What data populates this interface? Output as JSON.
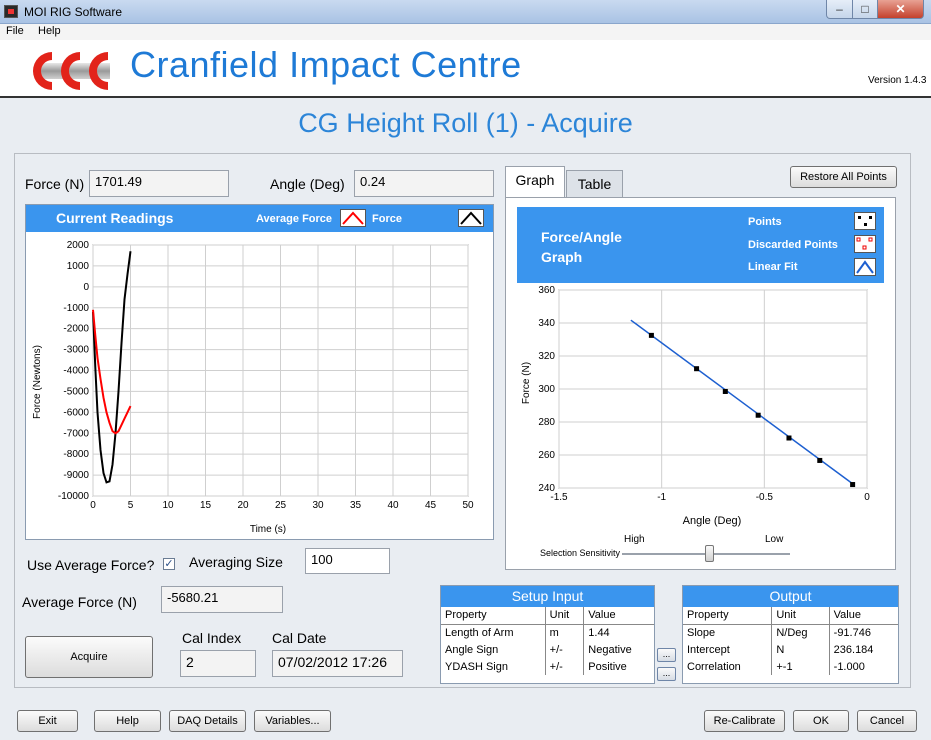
{
  "window": {
    "title": "MOI RIG Software",
    "min": "–",
    "max": "□",
    "close": "✕"
  },
  "menu": {
    "file": "File",
    "help": "Help"
  },
  "header": {
    "brand": "Cranfield Impact Centre",
    "version": "Version 1.4.3"
  },
  "page_title": "CG Height Roll (1) - Acquire",
  "readout": {
    "force_label": "Force (N)",
    "force_value": "1701.49",
    "angle_label": "Angle (Deg)",
    "angle_value": "0.24"
  },
  "current_readings": {
    "title": "Current Readings",
    "legend_average": "Average Force",
    "legend_force": "Force",
    "ylabel": "Force (Newtons)",
    "xlabel": "Time (s)",
    "x_ticks": [
      "0",
      "5",
      "10",
      "15",
      "20",
      "25",
      "30",
      "35",
      "40",
      "45",
      "50"
    ],
    "y_ticks": [
      "2000",
      "1000",
      "0",
      "-1000",
      "-2000",
      "-3000",
      "-4000",
      "-5000",
      "-6000",
      "-7000",
      "-8000",
      "-9000",
      "-10000"
    ],
    "average_color": "#ff0000",
    "force_color": "#000000"
  },
  "chart_data": [
    {
      "type": "line",
      "title": "Current Readings",
      "xlabel": "Time (s)",
      "ylabel": "Force (Newtons)",
      "xlim": [
        0,
        50
      ],
      "ylim": [
        -10000,
        2000
      ],
      "grid": true,
      "series": [
        {
          "name": "Force",
          "x": [
            0,
            0.3,
            0.6,
            1.0,
            1.4,
            1.8,
            2.2,
            2.6,
            3.0,
            3.4,
            3.8,
            4.2,
            4.6,
            5.0
          ],
          "values": [
            -1200,
            -3800,
            -6000,
            -7800,
            -8900,
            -9350,
            -9300,
            -8500,
            -7000,
            -5000,
            -2700,
            -600,
            600,
            1700
          ]
        },
        {
          "name": "Average Force",
          "x": [
            0,
            0.3,
            0.6,
            1.0,
            1.4,
            1.8,
            2.2,
            2.6,
            3.0,
            3.4,
            3.8,
            4.2,
            4.6,
            5.0
          ],
          "values": [
            -1100,
            -2300,
            -3400,
            -4400,
            -5300,
            -6000,
            -6500,
            -6900,
            -7000,
            -6900,
            -6600,
            -6300,
            -6000,
            -5700
          ]
        }
      ]
    },
    {
      "type": "scatter",
      "title": "Force/Angle Graph",
      "xlabel": "Angle (Deg)",
      "ylabel": "Force (N)",
      "xlim": [
        -1.5,
        0
      ],
      "ylim": [
        240,
        360
      ],
      "grid": true,
      "x_ticks": [
        "-1.5",
        "-1",
        "-0.5",
        "0"
      ],
      "y_ticks": [
        "360",
        "340",
        "320",
        "300",
        "280",
        "260",
        "240"
      ],
      "series": [
        {
          "name": "Points",
          "x": [
            -1.05,
            -0.83,
            -0.69,
            -0.53,
            -0.38,
            -0.23,
            -0.07
          ],
          "values": [
            332.5,
            312.3,
            298.5,
            284.1,
            270.3,
            256.7,
            242.1
          ]
        },
        {
          "name": "Linear Fit",
          "x": [
            -1.15,
            -0.07
          ],
          "values": [
            341.7,
            242.6
          ]
        }
      ]
    }
  ],
  "controls": {
    "use_average_label": "Use Average Force?",
    "use_average_checked": "✓",
    "averaging_size_label": "Averaging Size",
    "averaging_size_value": "100",
    "average_force_label": "Average Force (N)",
    "average_force_value": "-5680.21",
    "acquire_label": "Acquire",
    "cal_index_label": "Cal Index",
    "cal_index_value": "2",
    "cal_date_label": "Cal Date",
    "cal_date_value": "07/02/2012 17:26"
  },
  "tabs": {
    "graph": "Graph",
    "table": "Table"
  },
  "restore_all_points": "Restore All Points",
  "force_angle": {
    "title": "Force/Angle Graph",
    "legend_points": "Points",
    "legend_discarded": "Discarded Points",
    "legend_fit": "Linear Fit",
    "point_color": "#000000",
    "fit_color": "#1d5fd0"
  },
  "slider": {
    "label": "Selection Sensitivity",
    "high": "High",
    "low": "Low",
    "position": 0.52
  },
  "setup_input": {
    "title": "Setup  Input",
    "headers": [
      "Property",
      "Unit",
      "Value"
    ],
    "rows": [
      [
        "Length of Arm",
        "m",
        "1.44"
      ],
      [
        "Angle Sign",
        "+/-",
        "Negative"
      ],
      [
        "YDASH Sign",
        "+/-",
        "Positive"
      ]
    ],
    "dots": "..."
  },
  "output": {
    "title": "Output",
    "headers": [
      "Property",
      "Unit",
      "Value"
    ],
    "rows": [
      [
        "Slope",
        "N/Deg",
        "-91.746"
      ],
      [
        "Intercept",
        "N",
        "236.184"
      ],
      [
        "Correlation",
        "+-1",
        "-1.000"
      ]
    ]
  },
  "bottom": {
    "exit": "Exit",
    "help": "Help",
    "daq": "DAQ Details",
    "variables": "Variables...",
    "recalibrate": "Re-Calibrate",
    "ok": "OK",
    "cancel": "Cancel"
  }
}
